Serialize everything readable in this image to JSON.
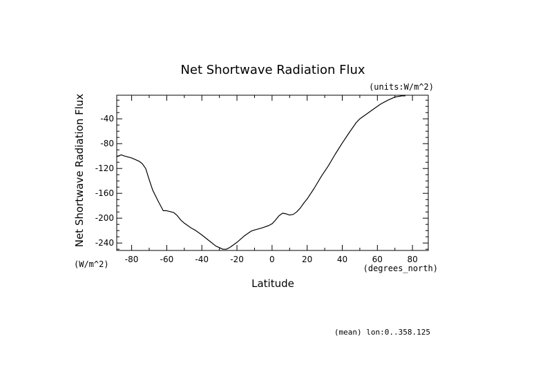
{
  "chart_data": {
    "type": "line",
    "title": "Net Shortwave Radiation Flux",
    "units_label": "(units:W/m^2)",
    "xlabel": "Latitude",
    "xunits": "(degrees_north)",
    "ylabel": "Net Shortwave Radiation Flux",
    "yunits": "(W/m^2)",
    "footnote": "(mean) lon:0..358.125",
    "xlim": [
      -88.5,
      89
    ],
    "ylim": [
      -252,
      -2
    ],
    "xticks": [
      -80,
      -60,
      -40,
      -20,
      0,
      20,
      40,
      60,
      80
    ],
    "xtick_labels": [
      "-80",
      "-60",
      "-40",
      "-20",
      "0",
      "20",
      "40",
      "60",
      "80"
    ],
    "yticks": [
      -40,
      -80,
      -120,
      -160,
      -200,
      -240
    ],
    "ytick_labels": [
      "-40",
      "-80",
      "-120",
      "-160",
      "-200",
      "-240"
    ],
    "grid": false,
    "series": [
      {
        "color": "#000000",
        "x": [
          -88.5,
          -86,
          -84,
          -80,
          -76,
          -74,
          -72,
          -70,
          -68,
          -65,
          -62,
          -60,
          -56,
          -54,
          -52,
          -50,
          -46,
          -44,
          -40,
          -36,
          -32,
          -28,
          -26,
          -24,
          -20,
          -16,
          -12,
          -10,
          -6,
          -2,
          0,
          2,
          4,
          6,
          8,
          10,
          12,
          14,
          16,
          18,
          20,
          24,
          28,
          32,
          36,
          40,
          44,
          48,
          50,
          54,
          58,
          62,
          66,
          70,
          74,
          76
        ],
        "y": [
          -101,
          -98,
          -100,
          -103,
          -108,
          -112,
          -120,
          -138,
          -155,
          -172,
          -188,
          -188,
          -191,
          -196,
          -203,
          -208,
          -216,
          -219,
          -227,
          -236,
          -245,
          -250,
          -250,
          -247,
          -239,
          -229,
          -221,
          -219,
          -216,
          -212,
          -209,
          -203,
          -196,
          -192,
          -193,
          -195,
          -194,
          -190,
          -184,
          -176,
          -169,
          -152,
          -133,
          -116,
          -97,
          -79,
          -62,
          -46,
          -40,
          -32,
          -24,
          -16,
          -10,
          -5,
          -3,
          -3
        ]
      }
    ]
  }
}
